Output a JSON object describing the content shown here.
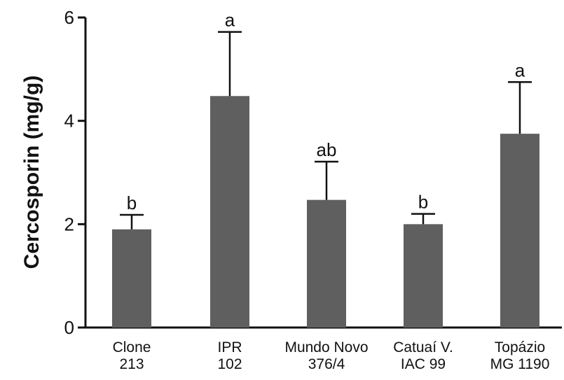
{
  "chart_data": {
    "type": "bar",
    "categories": [
      [
        "Clone",
        "213"
      ],
      [
        "IPR",
        "102"
      ],
      [
        "Mundo Novo",
        "376/4"
      ],
      [
        "Catuaí V.",
        "IAC 99"
      ],
      [
        "Topázio",
        "MG 1190"
      ]
    ],
    "values": [
      1.9,
      4.48,
      2.47,
      2.0,
      3.75
    ],
    "error_upper": [
      2.18,
      5.72,
      3.21,
      2.2,
      4.75
    ],
    "significance": [
      "b",
      "a",
      "ab",
      "b",
      "a"
    ],
    "ylabel": "Cercosporin (mg/g)",
    "xlabel": "",
    "title": "",
    "ylim": [
      0,
      6
    ],
    "yticks": [
      0,
      2,
      4,
      6
    ],
    "bar_color": "#5f5f5f",
    "axis_color": "#111111",
    "grid": false
  }
}
